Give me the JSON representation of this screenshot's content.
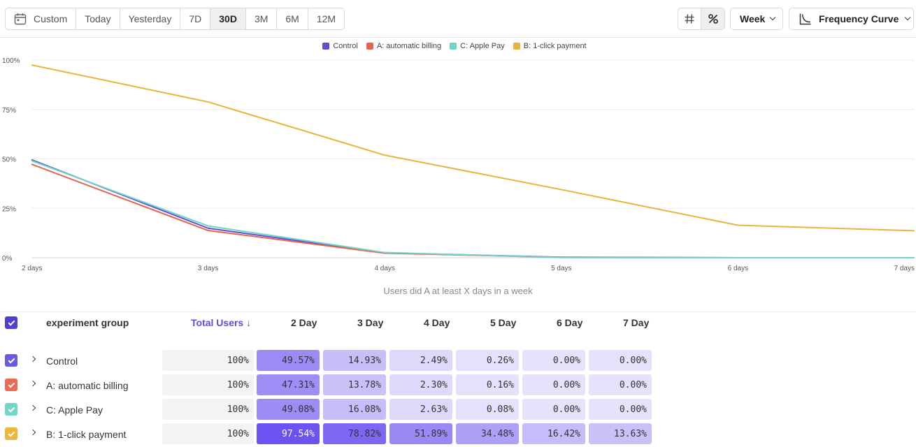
{
  "toolbar": {
    "ranges": [
      {
        "label": "Custom",
        "icon": "calendar-icon",
        "active": false
      },
      {
        "label": "Today",
        "active": false
      },
      {
        "label": "Yesterday",
        "active": false
      },
      {
        "label": "7D",
        "active": false
      },
      {
        "label": "30D",
        "active": true
      },
      {
        "label": "3M",
        "active": false
      },
      {
        "label": "6M",
        "active": false
      },
      {
        "label": "12M",
        "active": false
      }
    ],
    "toggle_icons": [
      "hash-icon",
      "percent-icon"
    ],
    "toggle_active": "percent-icon",
    "week_label": "Week",
    "chart_type_label": "Frequency Curve",
    "chart_type_icon": "curve-icon"
  },
  "chart_data": {
    "type": "line",
    "x": [
      "2 days",
      "3 days",
      "4 days",
      "5 days",
      "6 days",
      "7 days"
    ],
    "yticks": [
      "100%",
      "75%",
      "50%",
      "25%",
      "0%"
    ],
    "ylim": [
      0,
      100
    ],
    "grid": true,
    "legend_position": "top-center",
    "xlabel": "Users did A at least X days in a week",
    "series": [
      {
        "name": "Control",
        "color": "#5b4fd6",
        "values": [
          49.57,
          14.93,
          2.49,
          0.26,
          0.0,
          0.0
        ]
      },
      {
        "name": "A: automatic billing",
        "color": "#e8634f",
        "values": [
          47.31,
          13.78,
          2.3,
          0.16,
          0.0,
          0.0
        ]
      },
      {
        "name": "C: Apple Pay",
        "color": "#6fd3c8",
        "values": [
          49.08,
          16.08,
          2.63,
          0.08,
          0.0,
          0.0
        ]
      },
      {
        "name": "B: 1-click payment",
        "color": "#e7b53c",
        "values": [
          97.54,
          78.82,
          51.89,
          34.48,
          16.42,
          13.63
        ]
      }
    ]
  },
  "table": {
    "header_checkbox_color": "#4c3fd1",
    "columns": [
      "experiment group",
      "Total Users ↓",
      "2 Day",
      "3 Day",
      "4 Day",
      "5 Day",
      "6 Day",
      "7 Day"
    ],
    "rows": [
      {
        "label": "Control",
        "color": "#6a5ce0",
        "total": "100%",
        "cells": [
          "49.57%",
          "14.93%",
          "2.49%",
          "0.26%",
          "0.00%",
          "0.00%"
        ],
        "values": [
          49.57,
          14.93,
          2.49,
          0.26,
          0.0,
          0.0
        ]
      },
      {
        "label": "A: automatic billing",
        "color": "#ec6a55",
        "total": "100%",
        "cells": [
          "47.31%",
          "13.78%",
          "2.30%",
          "0.16%",
          "0.00%",
          "0.00%"
        ],
        "values": [
          47.31,
          13.78,
          2.3,
          0.16,
          0.0,
          0.0
        ]
      },
      {
        "label": "C: Apple Pay",
        "color": "#72d6cb",
        "total": "100%",
        "cells": [
          "49.08%",
          "16.08%",
          "2.63%",
          "0.08%",
          "0.00%",
          "0.00%"
        ],
        "values": [
          49.08,
          16.08,
          2.63,
          0.08,
          0.0,
          0.0
        ]
      },
      {
        "label": "B: 1-click payment",
        "color": "#f0b53c",
        "total": "100%",
        "cells": [
          "97.54%",
          "78.82%",
          "51.89%",
          "34.48%",
          "16.42%",
          "13.63%"
        ],
        "values": [
          97.54,
          78.82,
          51.89,
          34.48,
          16.42,
          13.63
        ]
      }
    ]
  }
}
